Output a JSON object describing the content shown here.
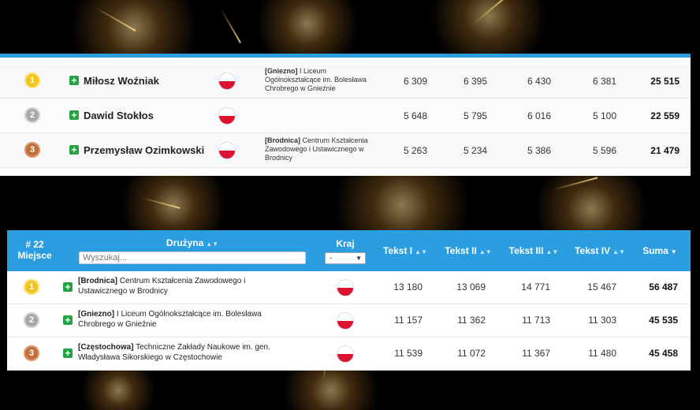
{
  "top_rows": [
    {
      "medal": "1",
      "name": "Miłosz Woźniak",
      "city": "[Gniezno]",
      "school": "I Liceum Ogólnokształcące im. Bolesława Chrobrego w Gnieźnie",
      "scores": [
        "6 309",
        "6 395",
        "6 430",
        "6 381"
      ],
      "sum": "25 515"
    },
    {
      "medal": "2",
      "name": "Dawid Stokłos",
      "city": "",
      "school": "",
      "scores": [
        "5 648",
        "5 795",
        "6 016",
        "5 100"
      ],
      "sum": "22 559"
    },
    {
      "medal": "3",
      "name": "Przemysław Ozimkowski",
      "city": "[Brodnica]",
      "school": "Centrum Kształcenia Zawodowego i Ustawicznego w Brodnicy",
      "scores": [
        "5 263",
        "5 234",
        "5 386",
        "5 596"
      ],
      "sum": "21 479"
    }
  ],
  "bottom_header": {
    "rank_label_line1": "# 22",
    "rank_label_line2": "Miejsce",
    "team_label": "Drużyna",
    "search_placeholder": "Wyszukaj...",
    "country_label": "Kraj",
    "country_value": "-",
    "col1": "Tekst I",
    "col2": "Tekst II",
    "col3": "Tekst III",
    "col4": "Tekst IV",
    "sum": "Suma"
  },
  "bottom_rows": [
    {
      "medal": "1",
      "city": "[Brodnica]",
      "school": "Centrum Kształcenia Zawodowego i Ustawicznego w Brodnicy",
      "scores": [
        "13 180",
        "13 069",
        "14 771",
        "15 467"
      ],
      "sum": "56 487"
    },
    {
      "medal": "2",
      "city": "[Gniezno]",
      "school": "I Liceum Ogólnokształcące im. Bolesława Chrobrego w Gnieźnie",
      "scores": [
        "11 157",
        "11 362",
        "11 713",
        "11 303"
      ],
      "sum": "45 535"
    },
    {
      "medal": "3",
      "city": "[Częstochowa]",
      "school": "Techniczne Zakłady Naukowe im. gen. Władysława Sikorskiego w Częstochowie",
      "scores": [
        "11 539",
        "11 072",
        "11 367",
        "11 480"
      ],
      "sum": "45 458"
    }
  ],
  "icons": {
    "expand": "plus-icon",
    "flag": "poland-flag-icon",
    "sort": "sort-icon",
    "chevron": "chevron-down-icon"
  },
  "colors": {
    "header": "#2a9ee0",
    "gold": "#f2c420",
    "silver": "#a7a7a7",
    "bronze": "#c0703e",
    "plus": "#25a244"
  }
}
